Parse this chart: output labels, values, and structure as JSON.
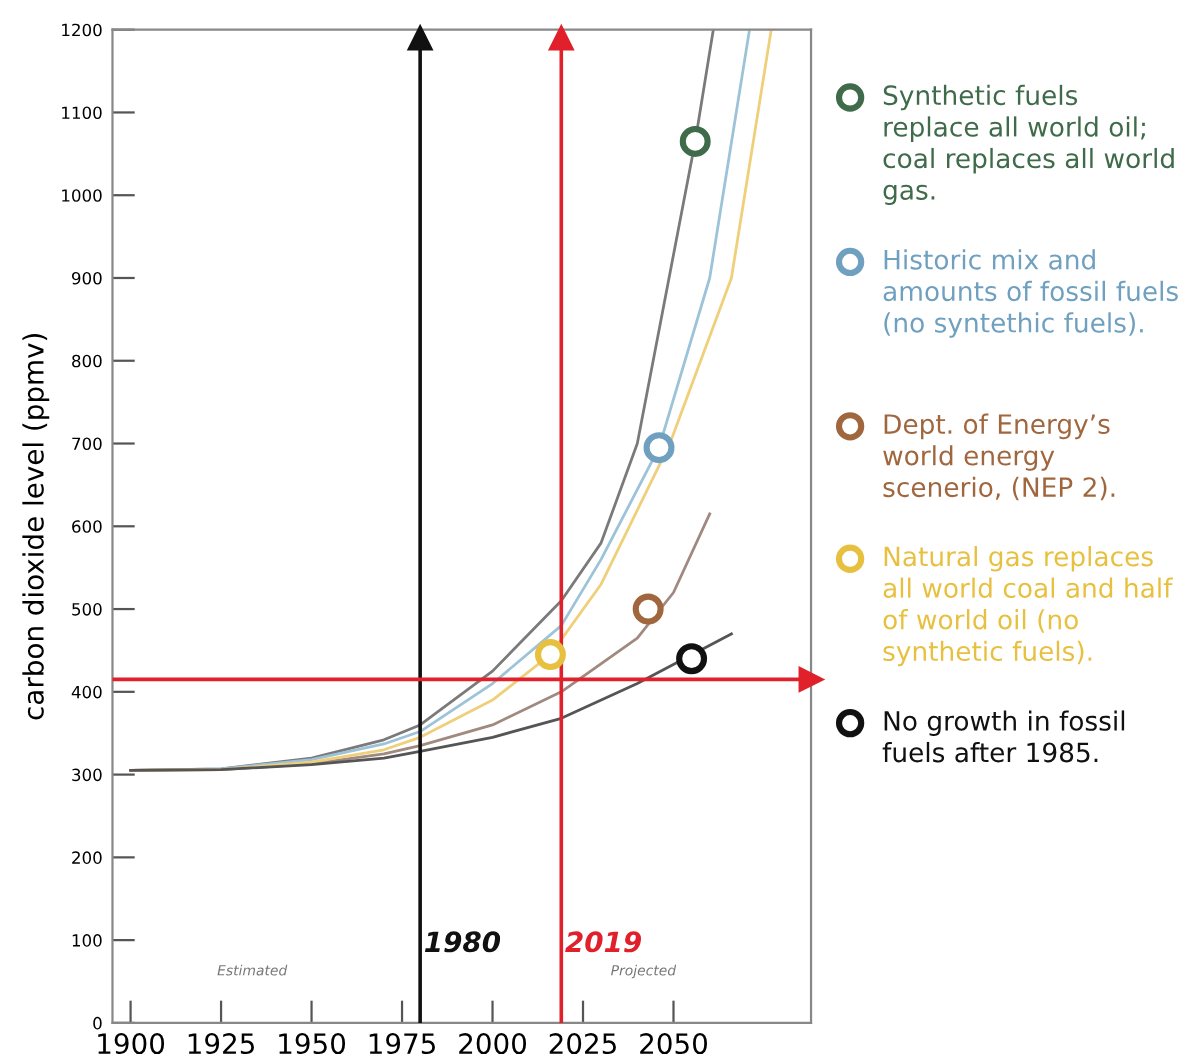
{
  "chart_data": {
    "type": "line",
    "ylabel": "carbon dioxide level (ppmv)",
    "xlim": [
      1895,
      2088
    ],
    "ylim": [
      0,
      1200
    ],
    "xticks": [
      1900,
      1925,
      1950,
      1975,
      2000,
      2025,
      2050
    ],
    "yticks": [
      0,
      100,
      200,
      300,
      400,
      500,
      600,
      700,
      800,
      900,
      1000,
      1100,
      1200
    ],
    "grid": false,
    "legend": "right",
    "line_style": "solid",
    "series": [
      {
        "color": "#7a7a7a",
        "x": [
          1900,
          1925,
          1950,
          1970,
          1980,
          2000,
          2019,
          2030,
          2040,
          2056,
          2061
        ],
        "values": [
          305,
          307,
          320,
          342,
          360,
          425,
          510,
          580,
          700,
          1065,
          1200
        ]
      },
      {
        "color": "#9cc3d8",
        "x": [
          1900,
          1925,
          1950,
          1970,
          1980,
          2000,
          2019,
          2030,
          2046,
          2060,
          2071
        ],
        "values": [
          305,
          307,
          318,
          337,
          352,
          410,
          480,
          560,
          695,
          900,
          1200
        ]
      },
      {
        "color": "#a08a80",
        "x": [
          1900,
          1925,
          1950,
          1970,
          1980,
          2000,
          2019,
          2040,
          2050,
          2060
        ],
        "values": [
          305,
          306,
          313,
          325,
          335,
          360,
          400,
          465,
          520,
          615
        ]
      },
      {
        "color": "#f0cf7a",
        "x": [
          1900,
          1925,
          1950,
          1970,
          1980,
          2000,
          2016,
          2030,
          2049,
          2066,
          2077
        ],
        "values": [
          305,
          306,
          315,
          330,
          345,
          390,
          445,
          530,
          700,
          900,
          1200
        ]
      },
      {
        "color": "#555555",
        "x": [
          1900,
          1925,
          1950,
          1970,
          1980,
          2000,
          2019,
          2040,
          2066
        ],
        "values": [
          305,
          306,
          312,
          320,
          328,
          345,
          368,
          410,
          470
        ]
      },
      {
        "type": "scatter",
        "marker": "circle",
        "name": "Synthetic fuels replace all world oil; coal replaces all world gas.",
        "color": "#3f6b4a",
        "x": [
          2056
        ],
        "values": [
          1065
        ]
      },
      {
        "type": "scatter",
        "marker": "circle",
        "name": "Historic mix and amounts of fossil fuels (no syntethic fuels).",
        "color": "#6fa0c0",
        "x": [
          2046
        ],
        "values": [
          695
        ]
      },
      {
        "type": "scatter",
        "marker": "circle",
        "name": "Dept. of Energy’s world energy scenerio, (NEP 2).",
        "color": "#a0673f",
        "x": [
          2043
        ],
        "values": [
          500
        ]
      },
      {
        "type": "scatter",
        "marker": "circle",
        "name": "Natural gas replaces all world coal and half of world oil (no synthetic fuels).",
        "color": "#e8c040",
        "x": [
          2016
        ],
        "values": [
          445
        ]
      },
      {
        "type": "scatter",
        "marker": "circle",
        "name": "No growth in fossil fuels after 1985.",
        "color": "#111111",
        "x": [
          2055
        ],
        "values": [
          440
        ]
      }
    ],
    "ref_lines": [
      {
        "axis": "x",
        "value": 1980,
        "label": "1980",
        "color": "#111111"
      },
      {
        "axis": "x",
        "value": 2019,
        "label": "2019",
        "color": "#e0202a"
      },
      {
        "axis": "y",
        "value": 415,
        "color": "#e0202a"
      }
    ],
    "annotations": [
      "Estimated",
      "Projected"
    ]
  }
}
